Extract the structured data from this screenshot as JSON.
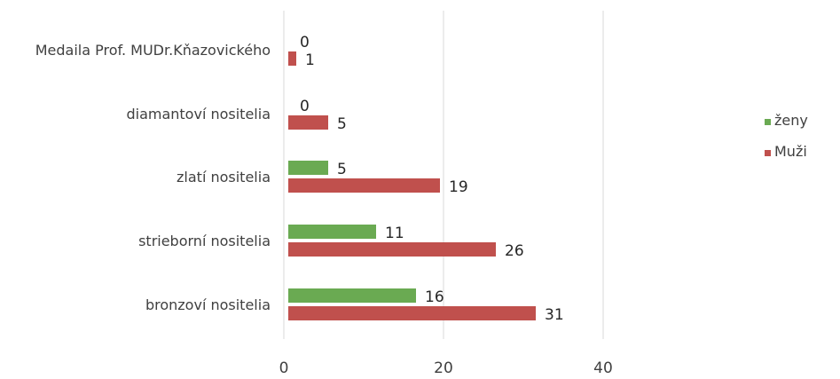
{
  "chart_data": {
    "type": "bar",
    "orientation": "horizontal",
    "title": "",
    "xlabel": "",
    "ylabel": "",
    "categories": [
      "Medaila Prof. MUDr.Kňazovického",
      "diamantoví nositelia",
      "zlatí nositelia",
      "strieborní nositelia",
      "bronzoví nositelia"
    ],
    "series": [
      {
        "name": "ženy",
        "values": [
          0,
          0,
          5,
          11,
          16
        ],
        "color": "#6aaa52"
      },
      {
        "name": "Muži",
        "values": [
          1,
          5,
          19,
          26,
          31
        ],
        "color": "#c0504d"
      }
    ],
    "xlim": [
      0,
      40
    ],
    "x_ticks": [
      "0",
      "20",
      "40"
    ],
    "grid": true,
    "legend_position": "right",
    "data_labels": true
  }
}
